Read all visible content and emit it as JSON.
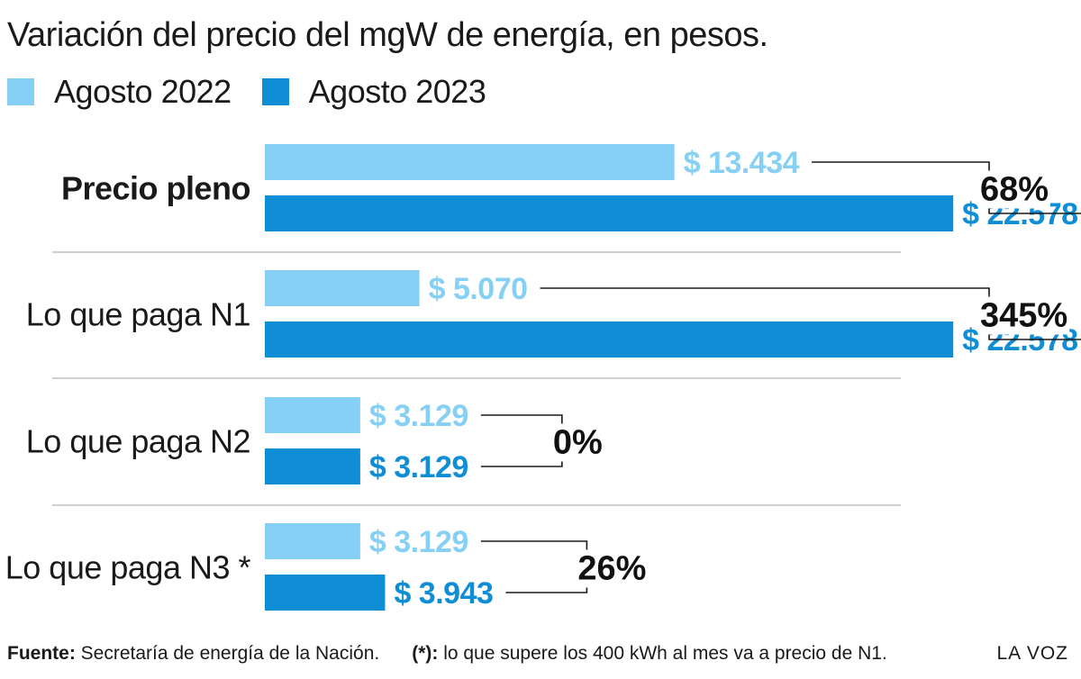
{
  "chart_data": {
    "type": "bar",
    "orientation": "horizontal",
    "title": "Variación del precio del mgW de energía, en pesos.",
    "categories": [
      "Precio pleno",
      "Lo que paga N1",
      "Lo que paga N2",
      "Lo que paga N3 *"
    ],
    "category_bold": [
      true,
      false,
      false,
      false
    ],
    "series": [
      {
        "name": "Agosto 2022",
        "color": "#86d0f5",
        "values": [
          13434,
          5070,
          3129,
          3129
        ],
        "labels": [
          "$ 13.434",
          "$ 5.070",
          "$ 3.129",
          "$ 3.129"
        ]
      },
      {
        "name": "Agosto 2023",
        "color": "#0f8ed6",
        "values": [
          22578,
          22578,
          3129,
          3943
        ],
        "labels": [
          "$ 22.578",
          "$ 22.578",
          "$ 3.129",
          "$ 3.943"
        ]
      }
    ],
    "variation_labels": [
      "68%",
      "345%",
      "0%",
      "26%"
    ],
    "xlim": [
      0,
      26000
    ],
    "grid": false,
    "legend_position": "top-left"
  },
  "footer": {
    "source_label": "Fuente:",
    "source_text": " Secretaría de energía de la Nación.",
    "note_label": "(*):",
    "note_text": " lo que supere los 400 kWh al mes va a precio de N1.",
    "brand": "LA VOZ"
  }
}
